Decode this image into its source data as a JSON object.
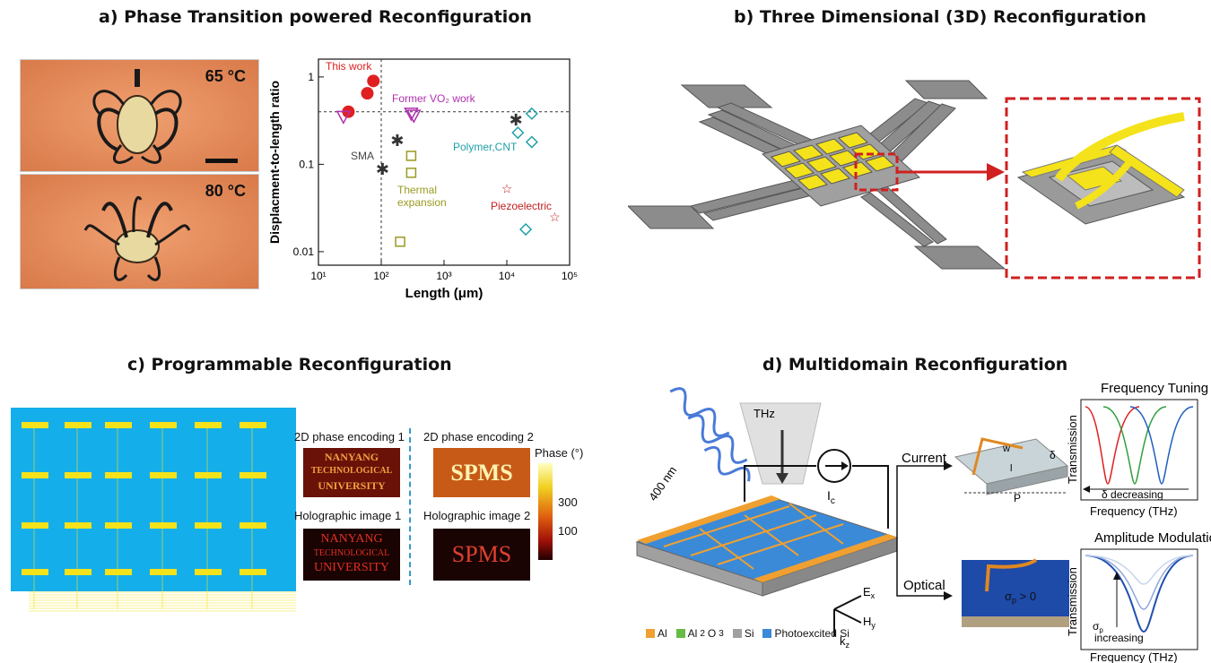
{
  "panels": {
    "a": {
      "title": "a) Phase Transition powered Reconfiguration",
      "photo_top_label": "65 °C",
      "photo_bottom_label": "80 °C"
    },
    "b": {
      "title": "b) Three Dimensional (3D) Reconfiguration"
    },
    "c": {
      "title": "c) Programmable Reconfiguration",
      "enc1": "2D phase encoding 1",
      "enc2": "2D phase encoding 2",
      "holo1": "Holographic image 1",
      "holo2": "Holographic image 2",
      "img_text1_l1": "NANYANG",
      "img_text1_l2": "TECHNOLOGICAL",
      "img_text1_l3": "UNIVERSITY",
      "img_text2": "SPMS",
      "colorbar_title": "Phase (°)",
      "colorbar_ticks": [
        "300",
        "100"
      ]
    },
    "d": {
      "title": "d) Multidomain Reconfiguration",
      "freq_tuning": "Frequency Tuning",
      "amp_mod": "Amplitude Modulation",
      "current": "Current",
      "optical": "Optical",
      "thz": "THz",
      "nm400": "400 nm",
      "ic": "I",
      "ic_sub": "c",
      "ex": "E",
      "ex_sub": "x",
      "hy": "H",
      "hy_sub": "y",
      "kz": "k",
      "kz_sub": "z",
      "w": "w",
      "l": "l",
      "delta": "δ",
      "P": "P",
      "sigma_gt": "σ",
      "sigma_sub": "p",
      "sigma_rest": " > 0",
      "transmission": "Transmission",
      "frequency": "Frequency (THz)",
      "delta_decreasing": "δ decreasing",
      "sigma_label": "σ",
      "increasing": "increasing",
      "legend": [
        {
          "label": "Al",
          "color": "#f0a030"
        },
        {
          "label": "Al",
          "sub": "2",
          "label2": "O",
          "sub2": "3",
          "color": "#66bb44"
        },
        {
          "label": "Si",
          "color": "#a0a0a0"
        },
        {
          "label": "Photoexcited Si",
          "color": "#3a8ad8"
        }
      ]
    }
  },
  "chart_data": {
    "type": "scatter",
    "xlabel": "Length (μm)",
    "ylabel": "Displacment-to-length ratio",
    "xscale": "log",
    "yscale": "log",
    "xlim": [
      10,
      100000
    ],
    "ylim": [
      0.007,
      1.6
    ],
    "x_tick_labels": [
      "10¹",
      "10²",
      "10³",
      "10⁴",
      "10⁵"
    ],
    "y_tick_labels": [
      "0.01",
      "0.1",
      "1"
    ],
    "reference_lines": {
      "horizontal_y": 0.4,
      "vertical_x": 100
    },
    "series": [
      {
        "name": "This work",
        "marker": "sphere",
        "color": "#e02020",
        "points": [
          [
            30,
            0.4
          ],
          [
            60,
            0.65
          ],
          [
            75,
            0.9
          ]
        ]
      },
      {
        "name": "Former VO₂ work",
        "marker": "triangle-down",
        "color": "#b030b0",
        "points": [
          [
            25,
            0.35
          ],
          [
            300,
            0.38
          ],
          [
            330,
            0.36
          ]
        ]
      },
      {
        "name": "SMA",
        "marker": "asterisk",
        "color": "#333333",
        "points": [
          [
            105,
            0.09
          ],
          [
            180,
            0.19
          ],
          [
            14000,
            0.33
          ]
        ]
      },
      {
        "name": "Thermal expansion",
        "marker": "square",
        "color": "#9a9a20",
        "points": [
          [
            300,
            0.125
          ],
          [
            300,
            0.08
          ],
          [
            200,
            0.013
          ]
        ]
      },
      {
        "name": "Polymer,CNT",
        "marker": "diamond",
        "color": "#20a0a8",
        "points": [
          [
            25000,
            0.38
          ],
          [
            15000,
            0.23
          ],
          [
            25000,
            0.18
          ],
          [
            20000,
            0.018
          ]
        ]
      },
      {
        "name": "Piezoelectric",
        "marker": "star",
        "color": "#c02020",
        "points": [
          [
            10000,
            0.053
          ],
          [
            58000,
            0.025
          ]
        ]
      }
    ],
    "annotations": [
      "This work",
      "Former VO₂ work",
      "SMA",
      "Thermal",
      "expansion",
      "Polymer,CNT",
      "Piezoelectric"
    ]
  }
}
